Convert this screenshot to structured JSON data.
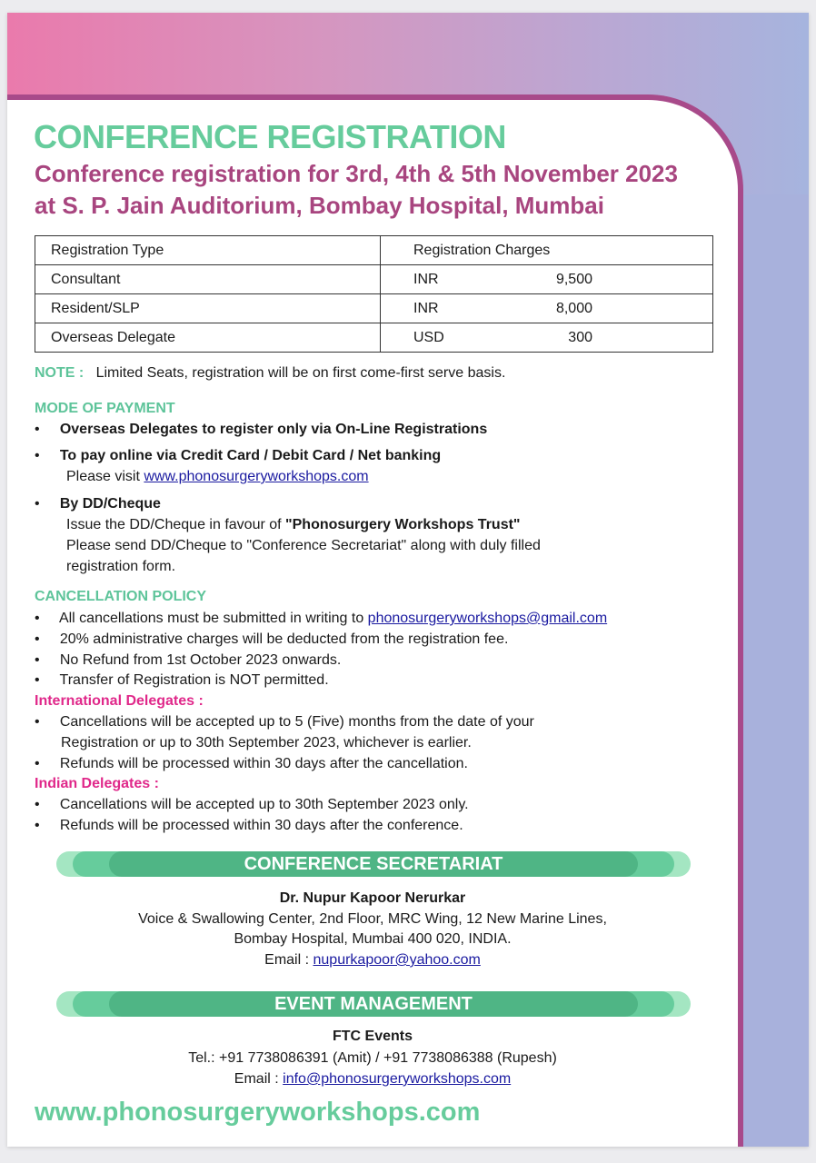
{
  "title": "CONFERENCE REGISTRATION",
  "subtitle_line1": "Conference registration for 3rd, 4th & 5th November 2023",
  "subtitle_line2": "at S. P. Jain Auditorium, Bombay Hospital, Mumbai",
  "table": {
    "headers": [
      "Registration Type",
      "Registration Charges"
    ],
    "rows": [
      {
        "type": "Consultant",
        "currency": "INR",
        "amount": "9,500"
      },
      {
        "type": "Resident/SLP",
        "currency": "INR",
        "amount": "8,000"
      },
      {
        "type": "Overseas Delegate",
        "currency": "USD",
        "amount": "300"
      }
    ]
  },
  "note": {
    "label": "NOTE :",
    "text": "Limited Seats, registration will be on first come-first serve basis."
  },
  "payment": {
    "heading": "MODE OF PAYMENT",
    "b1": "Overseas Delegates to register only via On-Line Registrations",
    "b2": "To pay online via Credit Card / Debit Card / Net banking",
    "b2_visit": "Please visit",
    "b2_link": "www.phonosurgeryworkshops.com",
    "b3": "By DD/Cheque",
    "b3_l1_pre": "Issue the DD/Cheque in favour of ",
    "b3_l1_bold": "\"Phonosurgery Workshops Trust\"",
    "b3_l2": "Please send DD/Cheque to \"Conference Secretariat\" along with duly filled",
    "b3_l3": "registration form."
  },
  "cancellation": {
    "heading": "CANCELLATION POLICY",
    "c1_pre": "All cancellations must be submitted in writing to",
    "c1_link": "phonosurgeryworkshops@gmail.com",
    "c2": "20% administrative charges will be deducted from the registration fee.",
    "c3": "No Refund from 1st October 2023 onwards.",
    "c4": "Transfer of Registration is NOT permitted.",
    "intl_heading": "International Delegates :",
    "i1a": "Cancellations will be accepted up to 5 (Five) months from the date of your",
    "i1b": "Registration or up to 30th September 2023, whichever is earlier.",
    "i2": "Refunds will be processed within 30 days after the cancellation.",
    "indian_heading": "Indian Delegates :",
    "n1": "Cancellations will be accepted up to 30th September 2023 only.",
    "n2": "Refunds will be processed within 30 days after the conference."
  },
  "secretariat": {
    "heading": "CONFERENCE SECRETARIAT",
    "name": "Dr. Nupur Kapoor Nerurkar",
    "addr1": "Voice & Swallowing Center, 2nd Floor, MRC Wing, 12 New Marine Lines,",
    "addr2": "Bombay Hospital, Mumbai 400 020, INDIA.",
    "email_label": "Email :",
    "email": "nupurkapoor@yahoo.com"
  },
  "event": {
    "heading": "EVENT MANAGEMENT",
    "name": "FTC Events",
    "tel": "Tel.: +91 7738086391 (Amit) / +91 7738086388 (Rupesh)",
    "email_label": "Email :",
    "email": "info@phonosurgeryworkshops.com"
  },
  "website": "www.phonosurgeryworkshops.com",
  "colors": {
    "green": "#66cc9c",
    "magenta": "#a8457f",
    "pink": "#e0288a",
    "link": "#1a1aa0"
  }
}
